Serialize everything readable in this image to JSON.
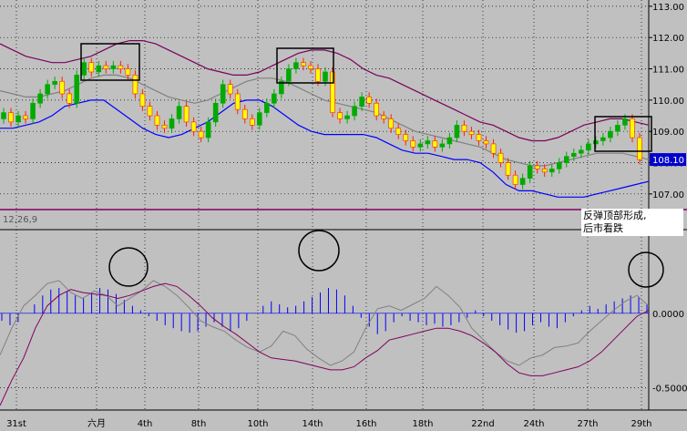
{
  "chart_data": [
    {
      "type": "candlestick",
      "title": "",
      "ylim": [
        106.5,
        113.2
      ],
      "ytick_labels": [
        "107.00",
        "108.00",
        "109.00",
        "110.00",
        "111.00",
        "112.00",
        "113.00"
      ],
      "ytick_values": [
        107,
        108,
        109,
        110,
        111,
        112,
        113
      ],
      "last_price_label": "108.10",
      "last_price": 108.1,
      "close_series": [
        109.6,
        109.3,
        109.5,
        109.4,
        109.9,
        110.2,
        110.5,
        110.6,
        110.2,
        109.9,
        110.8,
        111.2,
        110.9,
        111.1,
        111.0,
        111.1,
        111.0,
        110.8,
        110.2,
        109.8,
        109.5,
        109.2,
        109.1,
        109.4,
        109.8,
        109.3,
        109.0,
        108.8,
        109.3,
        109.9,
        110.5,
        110.2,
        109.7,
        109.4,
        109.2,
        109.6,
        109.9,
        110.2,
        110.6,
        111.0,
        111.2,
        111.1,
        111.0,
        110.6,
        110.9,
        109.6,
        109.4,
        109.5,
        109.8,
        110.1,
        109.9,
        109.5,
        109.4,
        109.1,
        108.9,
        108.7,
        108.5,
        108.6,
        108.7,
        108.5,
        108.6,
        108.8,
        109.2,
        109.0,
        108.9,
        108.7,
        108.6,
        108.3,
        108.0,
        107.6,
        107.3,
        107.5,
        107.9,
        107.8,
        107.7,
        107.8,
        108.0,
        108.2,
        108.3,
        108.4,
        108.6,
        108.7,
        108.8,
        109.0,
        109.2,
        109.4,
        108.8,
        108.1
      ],
      "series": [
        {
          "name": "",
          "upper_band": [
            111.8,
            111.6,
            111.4,
            111.3,
            111.2,
            111.2,
            111.3,
            111.4,
            111.6,
            111.8,
            111.9,
            111.9,
            111.8,
            111.6,
            111.4,
            111.2,
            111.0,
            110.9,
            110.8,
            110.8,
            110.9,
            111.1,
            111.3,
            111.5,
            111.6,
            111.6,
            111.5,
            111.3,
            111.0,
            110.8,
            110.7,
            110.5,
            110.3,
            110.1,
            109.9,
            109.7,
            109.5,
            109.3,
            109.2,
            109.0,
            108.8,
            108.7,
            108.7,
            108.8,
            109.0,
            109.2,
            109.3,
            109.4,
            109.4,
            109.3,
            109.2
          ],
          "mid_band": [
            110.3,
            110.2,
            110.1,
            110.1,
            110.2,
            110.3,
            110.5,
            110.7,
            110.8,
            110.8,
            110.7,
            110.5,
            110.3,
            110.1,
            110.0,
            109.9,
            110.0,
            110.2,
            110.4,
            110.6,
            110.7,
            110.7,
            110.6,
            110.4,
            110.2,
            110.0,
            109.9,
            109.8,
            109.7,
            109.6,
            109.4,
            109.2,
            109.0,
            108.9,
            108.8,
            108.7,
            108.6,
            108.5,
            108.3,
            108.1,
            108.0,
            107.9,
            107.9,
            108.0,
            108.1,
            108.2,
            108.3,
            108.3,
            108.3,
            108.2,
            108.1
          ],
          "lower_band": [
            109.1,
            109.1,
            109.2,
            109.3,
            109.5,
            109.8,
            109.9,
            110.0,
            110.0,
            109.7,
            109.4,
            109.1,
            108.9,
            108.8,
            108.9,
            109.1,
            109.3,
            109.6,
            109.9,
            110.0,
            110.0,
            109.8,
            109.5,
            109.2,
            109.0,
            108.9,
            108.9,
            108.9,
            108.9,
            108.8,
            108.6,
            108.4,
            108.3,
            108.3,
            108.2,
            108.1,
            108.1,
            108.0,
            107.7,
            107.3,
            107.1,
            107.1,
            107.0,
            106.9,
            106.9,
            106.9,
            107.0,
            107.1,
            107.2,
            107.3,
            107.4
          ]
        }
      ],
      "boxes": [
        {
          "label": "box-1"
        },
        {
          "label": "box-2"
        },
        {
          "label": "box-3"
        }
      ]
    },
    {
      "type": "macd",
      "title": "",
      "indicator_label": "12,26,9",
      "ylim": [
        -0.65,
        0.55
      ],
      "ytick_labels": [
        "0.0000",
        "-0.5000"
      ],
      "ytick_values": [
        0.0,
        -0.5
      ],
      "histogram": [
        -0.05,
        -0.08,
        -0.06,
        0.0,
        0.06,
        0.12,
        0.16,
        0.17,
        0.15,
        0.12,
        0.1,
        0.14,
        0.17,
        0.16,
        0.13,
        0.09,
        0.05,
        0.02,
        -0.02,
        -0.05,
        -0.08,
        -0.1,
        -0.12,
        -0.13,
        -0.12,
        -0.09,
        -0.06,
        -0.09,
        -0.12,
        -0.1,
        -0.05,
        0.0,
        0.05,
        0.08,
        0.06,
        0.04,
        0.05,
        0.08,
        0.11,
        0.14,
        0.17,
        0.16,
        0.12,
        0.05,
        -0.03,
        -0.09,
        -0.14,
        -0.12,
        -0.06,
        -0.02,
        -0.05,
        -0.06,
        -0.08,
        -0.07,
        -0.09,
        -0.08,
        -0.06,
        -0.03,
        0.02,
        -0.02,
        -0.05,
        -0.08,
        -0.11,
        -0.13,
        -0.12,
        -0.08,
        -0.06,
        -0.09,
        -0.1,
        -0.06,
        -0.02,
        0.02,
        0.05,
        0.03,
        0.06,
        0.08,
        0.1,
        0.12,
        0.11,
        0.06
      ],
      "macd_line": [
        -0.28,
        -0.1,
        0.05,
        0.12,
        0.2,
        0.22,
        0.14,
        0.1,
        0.15,
        0.12,
        0.05,
        0.1,
        0.15,
        0.22,
        0.18,
        0.12,
        0.04,
        -0.05,
        -0.09,
        -0.12,
        -0.18,
        -0.23,
        -0.26,
        -0.22,
        -0.12,
        -0.15,
        -0.24,
        -0.3,
        -0.35,
        -0.32,
        -0.26,
        -0.1,
        0.03,
        0.05,
        0.02,
        0.06,
        0.1,
        0.18,
        0.12,
        0.04,
        -0.1,
        -0.18,
        -0.26,
        -0.32,
        -0.35,
        -0.3,
        -0.28,
        -0.23,
        -0.22,
        -0.2,
        -0.12,
        -0.05,
        0.02,
        0.08,
        0.12,
        0.05
      ],
      "signal_line": [
        -0.62,
        -0.45,
        -0.3,
        -0.1,
        0.05,
        0.12,
        0.16,
        0.14,
        0.13,
        0.12,
        0.1,
        0.12,
        0.15,
        0.18,
        0.2,
        0.18,
        0.12,
        0.05,
        -0.03,
        -0.09,
        -0.14,
        -0.2,
        -0.26,
        -0.3,
        -0.31,
        -0.32,
        -0.34,
        -0.36,
        -0.38,
        -0.38,
        -0.36,
        -0.3,
        -0.25,
        -0.18,
        -0.16,
        -0.14,
        -0.12,
        -0.1,
        -0.1,
        -0.12,
        -0.15,
        -0.2,
        -0.26,
        -0.34,
        -0.4,
        -0.42,
        -0.42,
        -0.4,
        -0.38,
        -0.36,
        -0.32,
        -0.26,
        -0.18,
        -0.1,
        -0.02,
        0.02
      ]
    }
  ],
  "x_tick_labels": [
    "31st",
    "六月",
    "4th",
    "8th",
    "10th",
    "14th",
    "16th",
    "18th",
    "22nd",
    "24th",
    "27th",
    "29th"
  ],
  "annotation": {
    "line1": "反弹顶部形成,",
    "line2": "后市看跌"
  },
  "colors": {
    "background": "#c0c0c0",
    "grid": "#000000",
    "candle_up": "#00aa00",
    "candle_down": "#ffff00",
    "candle_hilite": "#ff2200",
    "upper_band": "#7a005a",
    "mid_band": "#808080",
    "lower_band": "#0000ff",
    "histogram": "#0000ff",
    "macd_line": "#808080",
    "signal_line": "#800060",
    "price_box_bg": "#0000cc"
  }
}
